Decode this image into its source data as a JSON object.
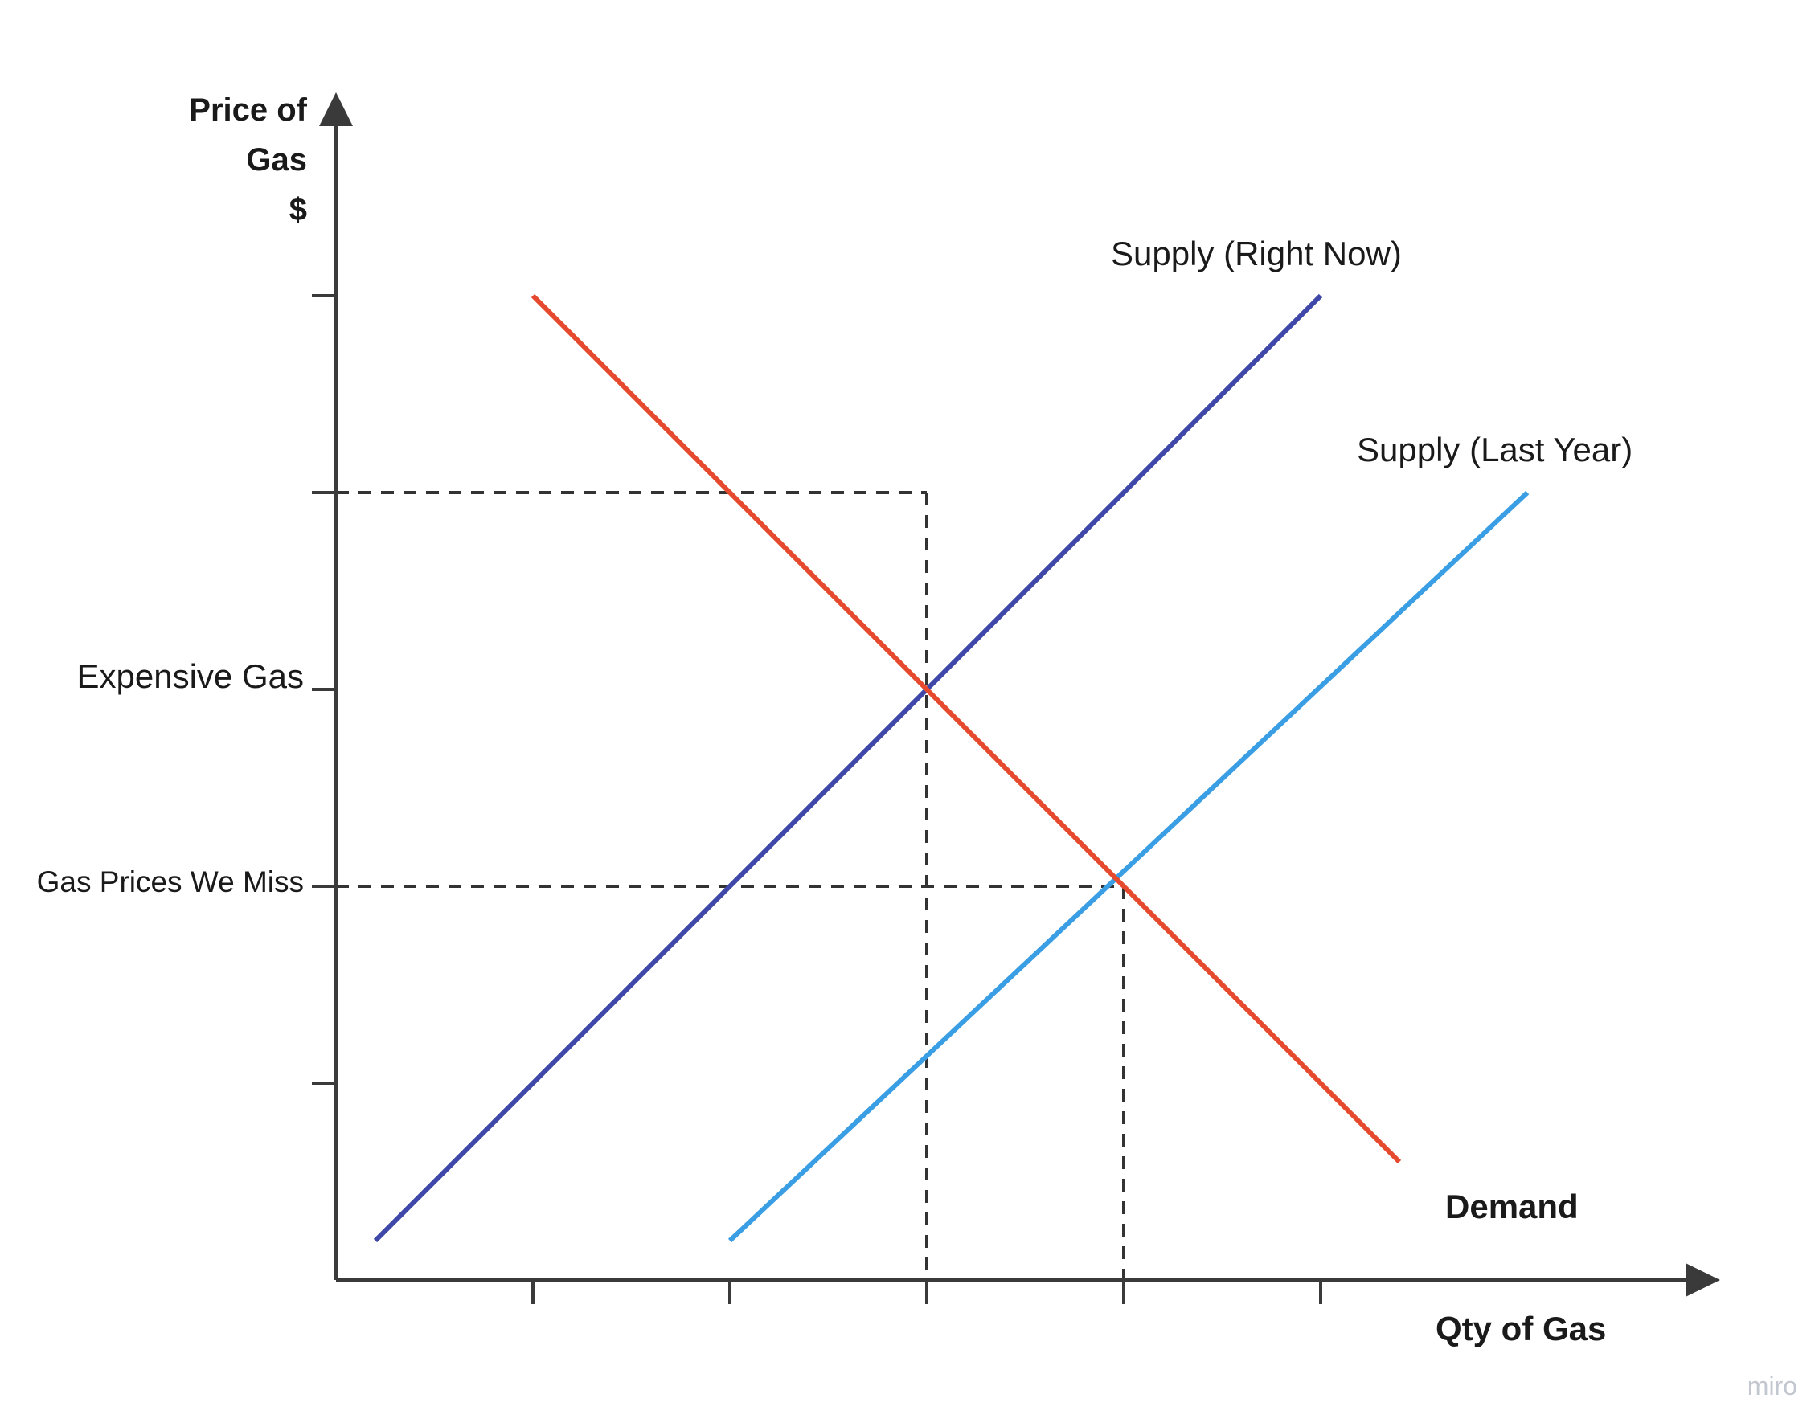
{
  "chart_data": {
    "type": "line",
    "ylabel_lines": [
      "Price of",
      "Gas",
      "$"
    ],
    "xlabel": "Qty of Gas",
    "xlim": [
      0,
      7
    ],
    "ylim": [
      0,
      6
    ],
    "x_ticks": [
      1,
      2,
      3,
      4,
      5
    ],
    "y_ticks": [
      1,
      3,
      4,
      5
    ],
    "y_tick_labels": [
      {
        "value": 4,
        "label": "Expensive Gas"
      },
      {
        "value": 2,
        "label": "Gas Prices We Miss"
      }
    ],
    "series": [
      {
        "name": "Supply (Right Now)",
        "color": "#3f48a8",
        "points": [
          [
            0.2,
            0.2
          ],
          [
            5.0,
            5.0
          ]
        ]
      },
      {
        "name": "Supply (Last Year)",
        "color": "#3a9ee4",
        "points": [
          [
            2.0,
            0.2
          ],
          [
            6.05,
            4.0
          ]
        ]
      },
      {
        "name": "Demand",
        "color": "#e64a2e",
        "points": [
          [
            1.0,
            5.0
          ],
          [
            5.4,
            0.6
          ]
        ]
      }
    ],
    "guides": [
      {
        "type": "h",
        "y": 4,
        "x_to": 3
      },
      {
        "type": "h",
        "y": 2,
        "x_to": 4
      },
      {
        "type": "v",
        "x": 3,
        "y_to": 4
      },
      {
        "type": "v",
        "x": 4,
        "y_to": 2
      }
    ],
    "grid": false,
    "legend": "none"
  },
  "watermark": "miro"
}
